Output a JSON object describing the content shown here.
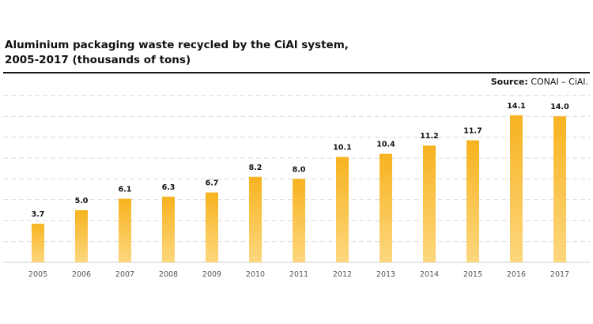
{
  "header": {
    "title_line1": "Aluminium packaging waste recycled by the CiAl system,",
    "title_line2": "2005-2017 (thousands of tons)",
    "source_label": "Source:",
    "source_text": "CONAI – CiAl."
  },
  "colors": {
    "bar_top": "#f7b320",
    "bar_bottom": "#fdd77e",
    "grid": "#d9d9d9",
    "axis": "#cfcfcf",
    "tick_text": "#555555",
    "label_text": "#111111"
  },
  "chart_data": {
    "type": "bar",
    "title": "Aluminium packaging waste recycled by the CiAl system, 2005-2017 (thousands of tons)",
    "categories": [
      "2005",
      "2006",
      "2007",
      "2008",
      "2009",
      "2010",
      "2011",
      "2012",
      "2013",
      "2014",
      "2015",
      "2016",
      "2017"
    ],
    "values": [
      3.7,
      5.0,
      6.1,
      6.3,
      6.7,
      8.2,
      8.0,
      10.1,
      10.4,
      11.2,
      11.7,
      14.1,
      14.0
    ],
    "value_labels": [
      "3.7",
      "5.0",
      "6.1",
      "6.3",
      "6.7",
      "8.2",
      "8.0",
      "10.1",
      "10.4",
      "11.2",
      "11.7",
      "14.1",
      "14.0"
    ],
    "ylim": [
      0,
      16
    ],
    "grid": true,
    "grid_style": "dashed",
    "legend": "none",
    "source": "Source: CONAI – CiAl."
  }
}
